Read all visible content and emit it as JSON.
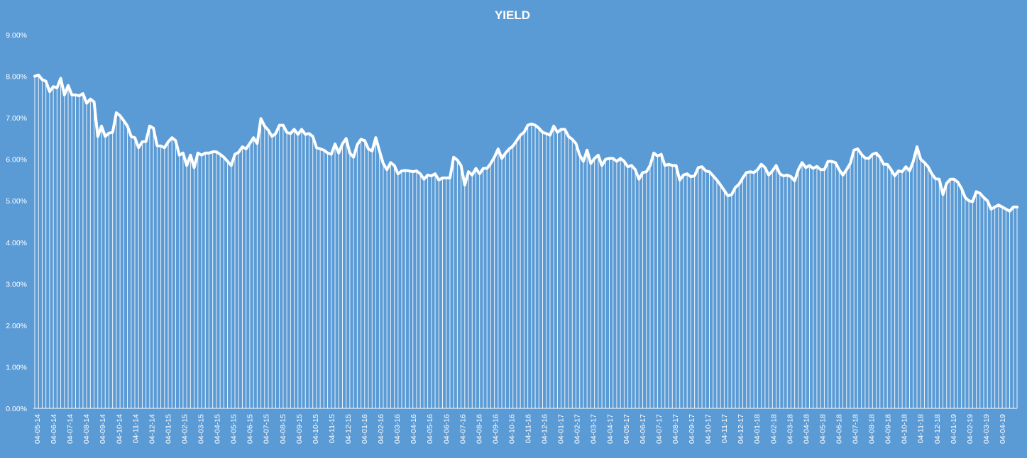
{
  "chart_data": {
    "type": "area",
    "title": "YIELD",
    "xlabel": "",
    "ylabel": "",
    "ylim": [
      0,
      0.09
    ],
    "yticks": [
      "0.00%",
      "1.00%",
      "2.00%",
      "3.00%",
      "4.00%",
      "5.00%",
      "6.00%",
      "7.00%",
      "8.00%",
      "9.00%"
    ],
    "ytick_values": [
      0,
      0.01,
      0.02,
      0.03,
      0.04,
      0.05,
      0.06,
      0.07,
      0.08,
      0.09
    ],
    "grid": false,
    "colors": {
      "background": "#5b9bd5",
      "series": "#ffffff"
    },
    "xtick_labels": [
      "04-05-14",
      "04-06-14",
      "04-07-14",
      "04-08-14",
      "04-09-14",
      "04-10-14",
      "04-11-14",
      "04-12-14",
      "04-01-15",
      "04-02-15",
      "04-03-15",
      "04-04-15",
      "04-05-15",
      "04-06-15",
      "04-07-15",
      "04-08-15",
      "04-09-15",
      "04-10-15",
      "04-11-15",
      "04-12-15",
      "04-01-16",
      "04-02-16",
      "04-03-16",
      "04-04-16",
      "04-05-16",
      "04-06-16",
      "04-07-16",
      "04-08-16",
      "04-09-16",
      "04-10-16",
      "04-11-16",
      "04-12-16",
      "04-01-17",
      "04-02-17",
      "04-03-17",
      "04-04-17",
      "04-05-17",
      "04-06-17",
      "04-07-17",
      "04-08-17",
      "04-09-17",
      "04-10-17",
      "04-11-17",
      "04-12-17",
      "04-01-18",
      "04-02-18",
      "04-03-18",
      "04-04-18",
      "04-05-18",
      "04-06-18",
      "04-07-18",
      "04-08-18",
      "04-09-18",
      "04-10-18",
      "04-11-18",
      "04-12-18",
      "04-01-19",
      "04-02-19",
      "04-03-19",
      "04-04-19"
    ],
    "series": [
      {
        "values": [
          0.08,
          0.0803,
          0.0792,
          0.0788,
          0.0763,
          0.0775,
          0.0772,
          0.0795,
          0.0755,
          0.0778,
          0.0755,
          0.0755,
          0.0753,
          0.0758,
          0.0735,
          0.0745,
          0.0738,
          0.0655,
          0.068,
          0.0655,
          0.0663,
          0.0665,
          0.0712,
          0.0705,
          0.0693,
          0.068,
          0.0655,
          0.0652,
          0.0628,
          0.0642,
          0.0643,
          0.068,
          0.0675,
          0.0633,
          0.0632,
          0.0628,
          0.0642,
          0.0652,
          0.0645,
          0.061,
          0.0615,
          0.0585,
          0.061,
          0.058,
          0.0615,
          0.061,
          0.0615,
          0.0615,
          0.0618,
          0.0618,
          0.0612,
          0.0605,
          0.0595,
          0.0585,
          0.0612,
          0.0617,
          0.063,
          0.0625,
          0.0638,
          0.0652,
          0.0638,
          0.0698,
          0.068,
          0.067,
          0.0655,
          0.0662,
          0.0682,
          0.0682,
          0.0665,
          0.0662,
          0.0672,
          0.066,
          0.0672,
          0.066,
          0.0662,
          0.0655,
          0.0628,
          0.0625,
          0.0622,
          0.0615,
          0.0612,
          0.0637,
          0.0615,
          0.0637,
          0.065,
          0.0615,
          0.0605,
          0.0635,
          0.0648,
          0.0645,
          0.0625,
          0.062,
          0.0652,
          0.062,
          0.059,
          0.0575,
          0.0592,
          0.0585,
          0.0565,
          0.0572,
          0.0573,
          0.0572,
          0.057,
          0.0572,
          0.0565,
          0.0552,
          0.0562,
          0.056,
          0.0565,
          0.055,
          0.0555,
          0.0555,
          0.0555,
          0.0605,
          0.0598,
          0.0585,
          0.0538,
          0.057,
          0.0562,
          0.0578,
          0.0565,
          0.0578,
          0.0578,
          0.059,
          0.0605,
          0.0625,
          0.0602,
          0.0615,
          0.0625,
          0.0632,
          0.0645,
          0.0658,
          0.0665,
          0.0682,
          0.0685,
          0.0682,
          0.0675,
          0.0665,
          0.0662,
          0.0658,
          0.068,
          0.0665,
          0.0672,
          0.0672,
          0.0655,
          0.0648,
          0.0638,
          0.061,
          0.0595,
          0.0622,
          0.059,
          0.0602,
          0.061,
          0.0585,
          0.06,
          0.0602,
          0.0602,
          0.0595,
          0.0602,
          0.0595,
          0.0582,
          0.0585,
          0.0575,
          0.0552,
          0.0568,
          0.057,
          0.0585,
          0.0615,
          0.0608,
          0.0612,
          0.0585,
          0.0588,
          0.0585,
          0.0585,
          0.055,
          0.0562,
          0.0565,
          0.0558,
          0.056,
          0.058,
          0.0582,
          0.0572,
          0.057,
          0.056,
          0.055,
          0.0538,
          0.0525,
          0.0512,
          0.0515,
          0.0532,
          0.054,
          0.0555,
          0.0568,
          0.057,
          0.0568,
          0.0575,
          0.0588,
          0.058,
          0.0562,
          0.0572,
          0.0585,
          0.0565,
          0.056,
          0.0562,
          0.0558,
          0.0548,
          0.0575,
          0.0592,
          0.058,
          0.0585,
          0.0578,
          0.0583,
          0.0575,
          0.0575,
          0.0595,
          0.0595,
          0.0592,
          0.0575,
          0.0562,
          0.0575,
          0.059,
          0.0622,
          0.0625,
          0.0612,
          0.0603,
          0.0602,
          0.0612,
          0.0615,
          0.0605,
          0.0588,
          0.0588,
          0.0575,
          0.056,
          0.0572,
          0.057,
          0.0582,
          0.0572,
          0.0595,
          0.063,
          0.06,
          0.0592,
          0.0582,
          0.0565,
          0.0553,
          0.0552,
          0.0515,
          0.0542,
          0.0552,
          0.0552,
          0.0545,
          0.053,
          0.0508,
          0.05,
          0.0498,
          0.0522,
          0.0518,
          0.0508,
          0.05,
          0.048,
          0.0485,
          0.049,
          0.0485,
          0.048,
          0.0475,
          0.0485,
          0.0485
        ]
      }
    ]
  }
}
